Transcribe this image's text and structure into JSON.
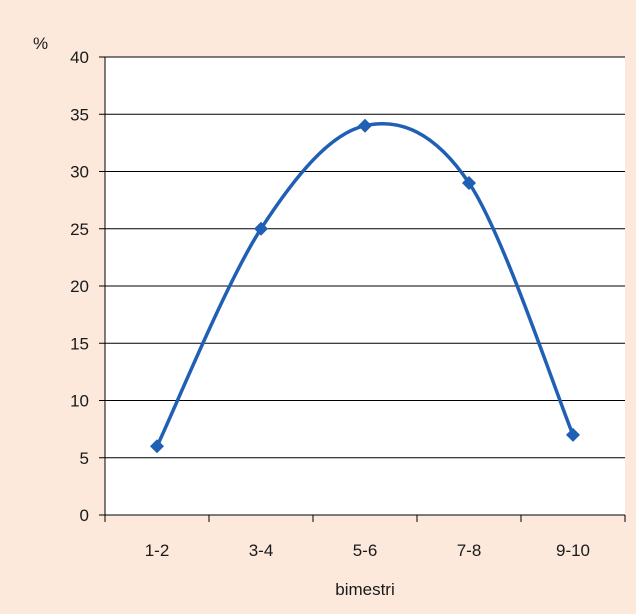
{
  "chart_data": {
    "type": "line",
    "title": "",
    "xlabel": "bimestri",
    "ylabel": "%",
    "categories": [
      "1-2",
      "3-4",
      "5-6",
      "7-8",
      "9-10"
    ],
    "series": [
      {
        "values": [
          6,
          25,
          34,
          29,
          7
        ]
      }
    ],
    "ylim": [
      0,
      40
    ],
    "yticks": [
      0,
      5,
      10,
      15,
      20,
      25,
      30,
      35,
      40
    ],
    "grid": true,
    "smooth": true,
    "marker": "diamond",
    "colors": {
      "background": "#fce9dc",
      "plot_area": "#ffffff",
      "line": "#1f5fb4",
      "grid": "#000000"
    }
  }
}
